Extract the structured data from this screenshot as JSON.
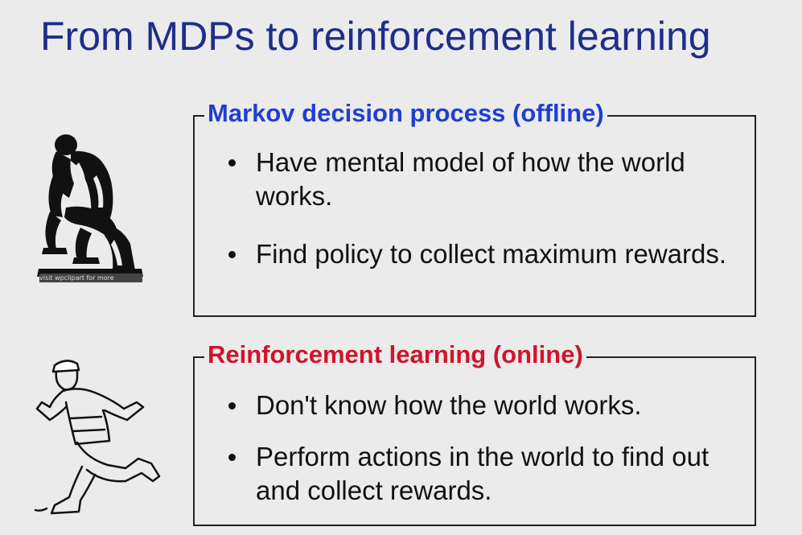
{
  "title": "From MDPs to reinforcement learning",
  "sections": [
    {
      "heading": "Markov decision process (offline)",
      "heading_color": "#1f3fcf",
      "bullets": [
        "Have mental model of how the world works.",
        "Find policy to collect maximum rewards."
      ]
    },
    {
      "heading": "Reinforcement learning (online)",
      "heading_color": "#d0142a",
      "bullets": [
        "Don't know how the world works.",
        "Perform actions in the world to find out and collect rewards."
      ]
    }
  ],
  "images": {
    "thinker_credit": "visit wpclipart for more",
    "thinker_icon": "thinker-statue-icon",
    "runner_icon": "running-man-icon"
  },
  "colors": {
    "title": "#1f2d8a",
    "background": "#ebebeb"
  }
}
